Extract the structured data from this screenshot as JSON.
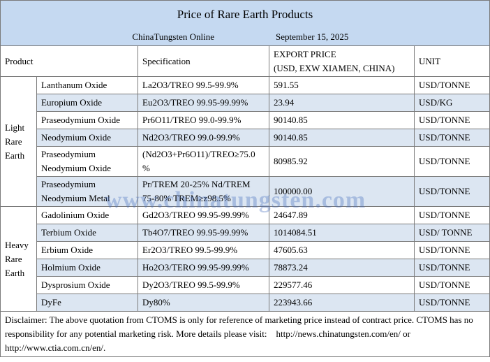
{
  "header": {
    "title": "Price of Rare Earth Products",
    "source": "ChinaTungsten Online",
    "date": "September 15, 2025"
  },
  "table": {
    "columns": {
      "product": "Product",
      "specification": "Specification",
      "price": [
        "EXPORT PRICE",
        "(USD, EXW XIAMEN, CHINA)"
      ],
      "unit": "UNIT"
    },
    "groups": [
      {
        "name": "Light Rare Earth",
        "rows": [
          [
            "Lanthanum Oxide",
            "La2O3/TREO 99.5-99.9%",
            "591.55",
            "USD/TONNE"
          ],
          [
            "Europium Oxide",
            "Eu2O3/TREO 99.95-99.99%",
            "23.94",
            "USD/KG"
          ],
          [
            "Praseodymium Oxide",
            "Pr6O11/TREO 99.0-99.9%",
            "90140.85",
            "USD/TONNE"
          ],
          [
            "Neodymium Oxide",
            "Nd2O3/TREO 99.0-99.9%",
            "90140.85",
            "USD/TONNE"
          ],
          [
            "Praseodymium Neodymium Oxide",
            "(Nd2O3+Pr6O11)/TREO≥75.0 %",
            "80985.92",
            "USD/TONNE"
          ],
          [
            "Praseodymium Neodymium Metal",
            "Pr/TREM 20-25% Nd/TREM 75-80% TREM≥z98.5%",
            "100000.00",
            "USD/TONNE"
          ]
        ]
      },
      {
        "name": "Heavy Rare Earth",
        "rows": [
          [
            "Gadolinium Oxide",
            "Gd2O3/TREO 99.95-99.99%",
            "24647.89",
            "USD/TONNE"
          ],
          [
            "Terbium Oxide",
            "Tb4O7/TREO 99.95-99.99%",
            "1014084.51",
            "USD/ TONNE"
          ],
          [
            "Erbium Oxide",
            "Er2O3/TREO 99.5-99.9%",
            "47605.63",
            "USD/TONNE"
          ],
          [
            "Holmium Oxide",
            "Ho2O3/TERO 99.95-99.99%",
            "78873.24",
            "USD/TONNE"
          ],
          [
            "Dysprosium Oxide",
            "Dy2O3/TREO 99.5-99.9%",
            "229577.46",
            "USD/TONNE"
          ],
          [
            "DyFe",
            "Dy80%",
            "223943.66",
            "USD/TONNE"
          ]
        ]
      }
    ]
  },
  "disclaimer": "Disclaimer: The above quotation from CTOMS is only for reference of marketing price instead of contract price. CTOMS has no responsibility for any potential marketing risk. More details please visit:    http://news.chinatungsten.com/en/ or http://www.ctia.com.cn/en/.",
  "watermark": "www.chinatungsten.com"
}
